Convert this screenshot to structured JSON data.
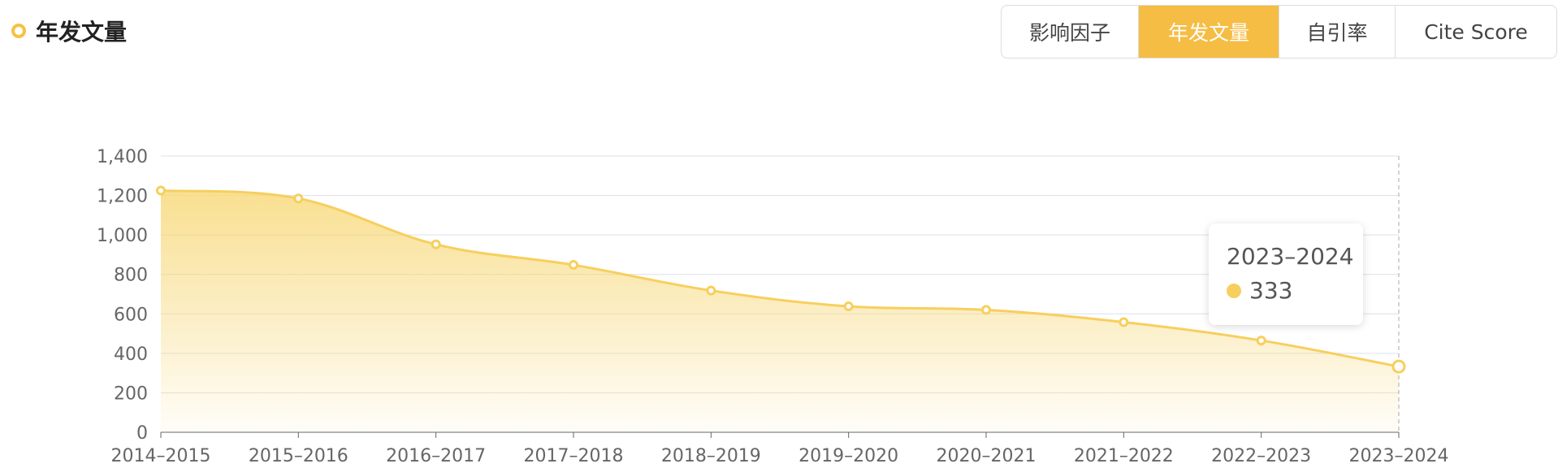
{
  "header": {
    "title": "年发文量",
    "tabs": [
      "影响因子",
      "年发文量",
      "自引率",
      "Cite Score"
    ],
    "active_tab": 1
  },
  "chart_data": {
    "type": "area",
    "categories": [
      "2014–2015",
      "2015–2016",
      "2016–2017",
      "2017–2018",
      "2018–2019",
      "2019–2020",
      "2020–2021",
      "2021–2022",
      "2022–2023",
      "2023–2024"
    ],
    "values": [
      1225,
      1185,
      952,
      848,
      718,
      638,
      620,
      558,
      465,
      333
    ],
    "color": "#f7cf5e",
    "ylim": [
      0,
      1400
    ],
    "yticks": [
      0,
      200,
      400,
      600,
      800,
      {
        "value": 1000,
        "label": "1,000"
      },
      {
        "value": 1200,
        "label": "1,200"
      },
      {
        "value": 1400,
        "label": "1,400"
      }
    ],
    "grid": true,
    "tooltip_index": 9
  }
}
